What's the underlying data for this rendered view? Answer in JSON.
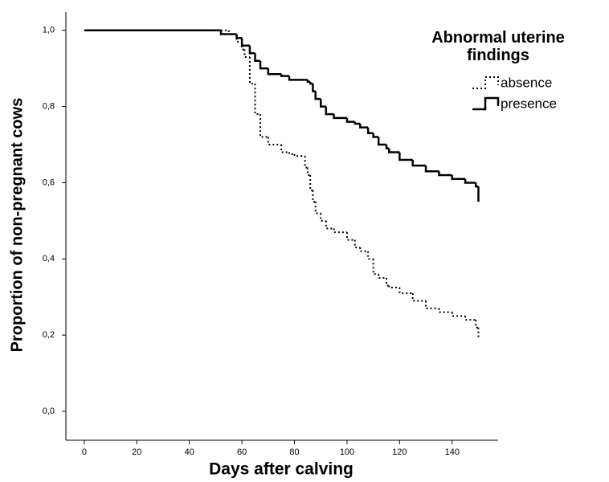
{
  "chart_data": {
    "type": "step",
    "x_label": "Days after calving",
    "y_label": "Proportion of non-pregnant cows",
    "legend_title": "Abnormal uterine findings",
    "x": [
      0,
      50,
      52,
      55,
      58,
      60,
      61,
      63,
      65,
      67,
      70,
      75,
      78,
      80,
      84,
      85,
      86,
      87,
      88,
      90,
      92,
      95,
      100,
      103,
      105,
      108,
      110,
      112,
      115,
      116,
      120,
      125,
      130,
      135,
      140,
      145,
      149,
      150
    ],
    "series": [
      {
        "name": "absence",
        "color": "#000000",
        "style": "dotted",
        "values": [
          1.0,
          1.0,
          1.0,
          0.99,
          0.97,
          0.95,
          0.93,
          0.86,
          0.78,
          0.72,
          0.7,
          0.68,
          0.675,
          0.67,
          0.64,
          0.62,
          0.58,
          0.55,
          0.52,
          0.5,
          0.48,
          0.47,
          0.45,
          0.43,
          0.42,
          0.4,
          0.36,
          0.35,
          0.33,
          0.325,
          0.31,
          0.29,
          0.27,
          0.26,
          0.25,
          0.24,
          0.22,
          0.19
        ]
      },
      {
        "name": "presence",
        "color": "#000000",
        "style": "solid",
        "values": [
          1.0,
          1.0,
          0.99,
          0.99,
          0.98,
          0.96,
          0.96,
          0.94,
          0.92,
          0.9,
          0.885,
          0.88,
          0.87,
          0.87,
          0.87,
          0.865,
          0.86,
          0.84,
          0.82,
          0.8,
          0.78,
          0.77,
          0.76,
          0.755,
          0.745,
          0.73,
          0.72,
          0.7,
          0.69,
          0.68,
          0.66,
          0.645,
          0.63,
          0.62,
          0.61,
          0.6,
          0.59,
          0.55
        ]
      }
    ],
    "xlim": [
      -7,
      157.5
    ],
    "ylim": [
      -0.076,
      1.048
    ],
    "xticks": [
      0,
      20,
      40,
      60,
      80,
      100,
      120,
      140
    ],
    "yticks": [
      {
        "value": 0,
        "label": "0,0"
      },
      {
        "value": 0.2,
        "label": "0,2"
      },
      {
        "value": 0.4,
        "label": "0,4"
      },
      {
        "value": 0.6,
        "label": "0,6"
      },
      {
        "value": 0.8,
        "label": "0,8"
      },
      {
        "value": 1.0,
        "label": "1,0"
      }
    ],
    "grid": false,
    "legend": "top-right"
  }
}
